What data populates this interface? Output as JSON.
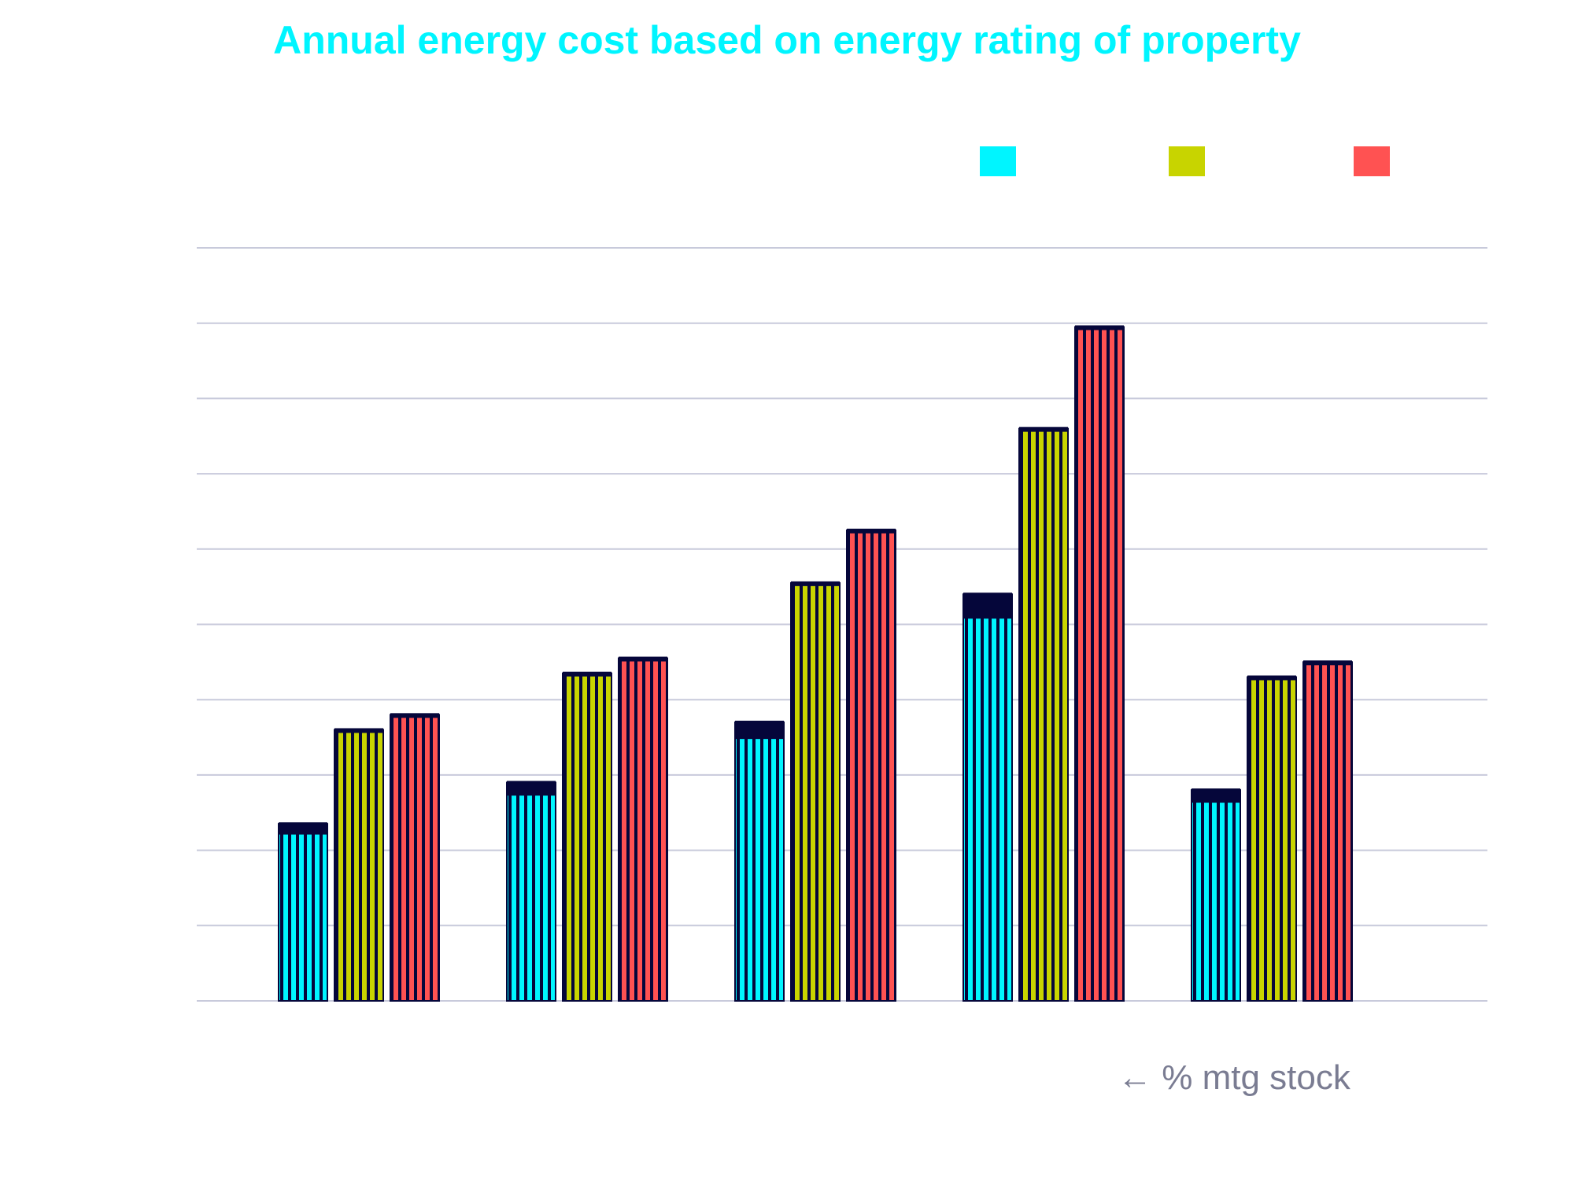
{
  "chart_data": {
    "type": "bar",
    "title": "Annual energy cost based on energy rating of property",
    "xlabel": "",
    "ylabel": "",
    "ylim": [
      0,
      10
    ],
    "grid": true,
    "legend_position": "top-right",
    "categories": [
      "",
      "",
      "",
      "",
      ""
    ],
    "series": [
      {
        "color": "#00F5FF",
        "values": [
          2.35,
          2.9,
          3.7,
          5.4,
          2.8
        ]
      },
      {
        "color": "#C8D400",
        "values": [
          3.6,
          4.35,
          5.55,
          7.6,
          4.3
        ]
      },
      {
        "color": "#FF5252",
        "values": [
          3.8,
          4.55,
          6.25,
          8.95,
          4.5
        ]
      }
    ],
    "mortgage_stock_tops": [
      2.35,
      2.9,
      3.7,
      5.4,
      2.8
    ],
    "annotation": "← % mtg stock"
  },
  "colors": {
    "overlay": "#05063A",
    "grid": "#C8CADB",
    "text": "#7A7C92"
  }
}
